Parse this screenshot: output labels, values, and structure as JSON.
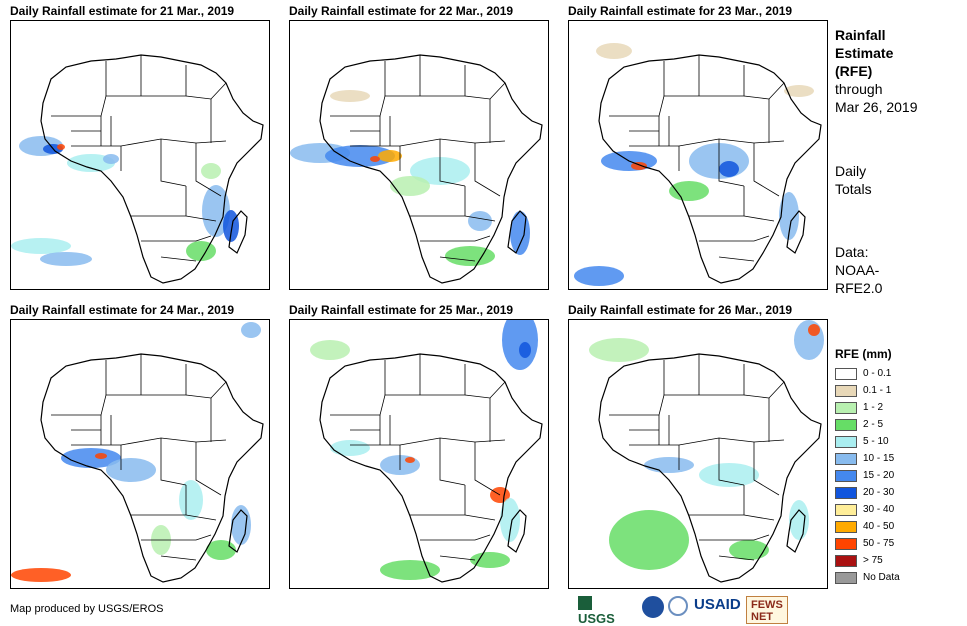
{
  "panels": [
    {
      "title": "Daily Rainfall estimate for 21 Mar., 2019"
    },
    {
      "title": "Daily Rainfall estimate for 22 Mar., 2019"
    },
    {
      "title": "Daily Rainfall estimate for 23 Mar., 2019"
    },
    {
      "title": "Daily Rainfall estimate for 24 Mar., 2019"
    },
    {
      "title": "Daily Rainfall estimate for 25 Mar., 2019"
    },
    {
      "title": "Daily Rainfall estimate for 26 Mar., 2019"
    }
  ],
  "side": {
    "title_line1": "Rainfall",
    "title_line2": "Estimate",
    "title_line3": "(RFE)",
    "through": "through",
    "date": "Mar 26, 2019",
    "daily": "Daily",
    "totals": "Totals",
    "data_label": "Data:",
    "data_src1": "NOAA-",
    "data_src2": "RFE2.0"
  },
  "legend": {
    "title": "RFE (mm)",
    "items": [
      {
        "label": "0 - 0.1",
        "color": "#ffffff"
      },
      {
        "label": "0.1 - 1",
        "color": "#e8d8b8"
      },
      {
        "label": "1 - 2",
        "color": "#b8f0b0"
      },
      {
        "label": "2 - 5",
        "color": "#66dd66"
      },
      {
        "label": "5 - 10",
        "color": "#aaeef0"
      },
      {
        "label": "10 - 15",
        "color": "#88bbee"
      },
      {
        "label": "15 - 20",
        "color": "#4488ee"
      },
      {
        "label": "20 - 30",
        "color": "#1155dd"
      },
      {
        "label": "30 - 40",
        "color": "#ffee99"
      },
      {
        "label": "40 - 50",
        "color": "#ffaa00"
      },
      {
        "label": "50 - 75",
        "color": "#ff4400"
      },
      {
        "label": "> 75",
        "color": "#aa1111"
      },
      {
        "label": "No Data",
        "color": "#999999"
      }
    ]
  },
  "credit": "Map produced by USGS/EROS",
  "logos": {
    "usgs": "USGS",
    "usaid": "USAID",
    "fewsnet": "FEWS NET"
  }
}
